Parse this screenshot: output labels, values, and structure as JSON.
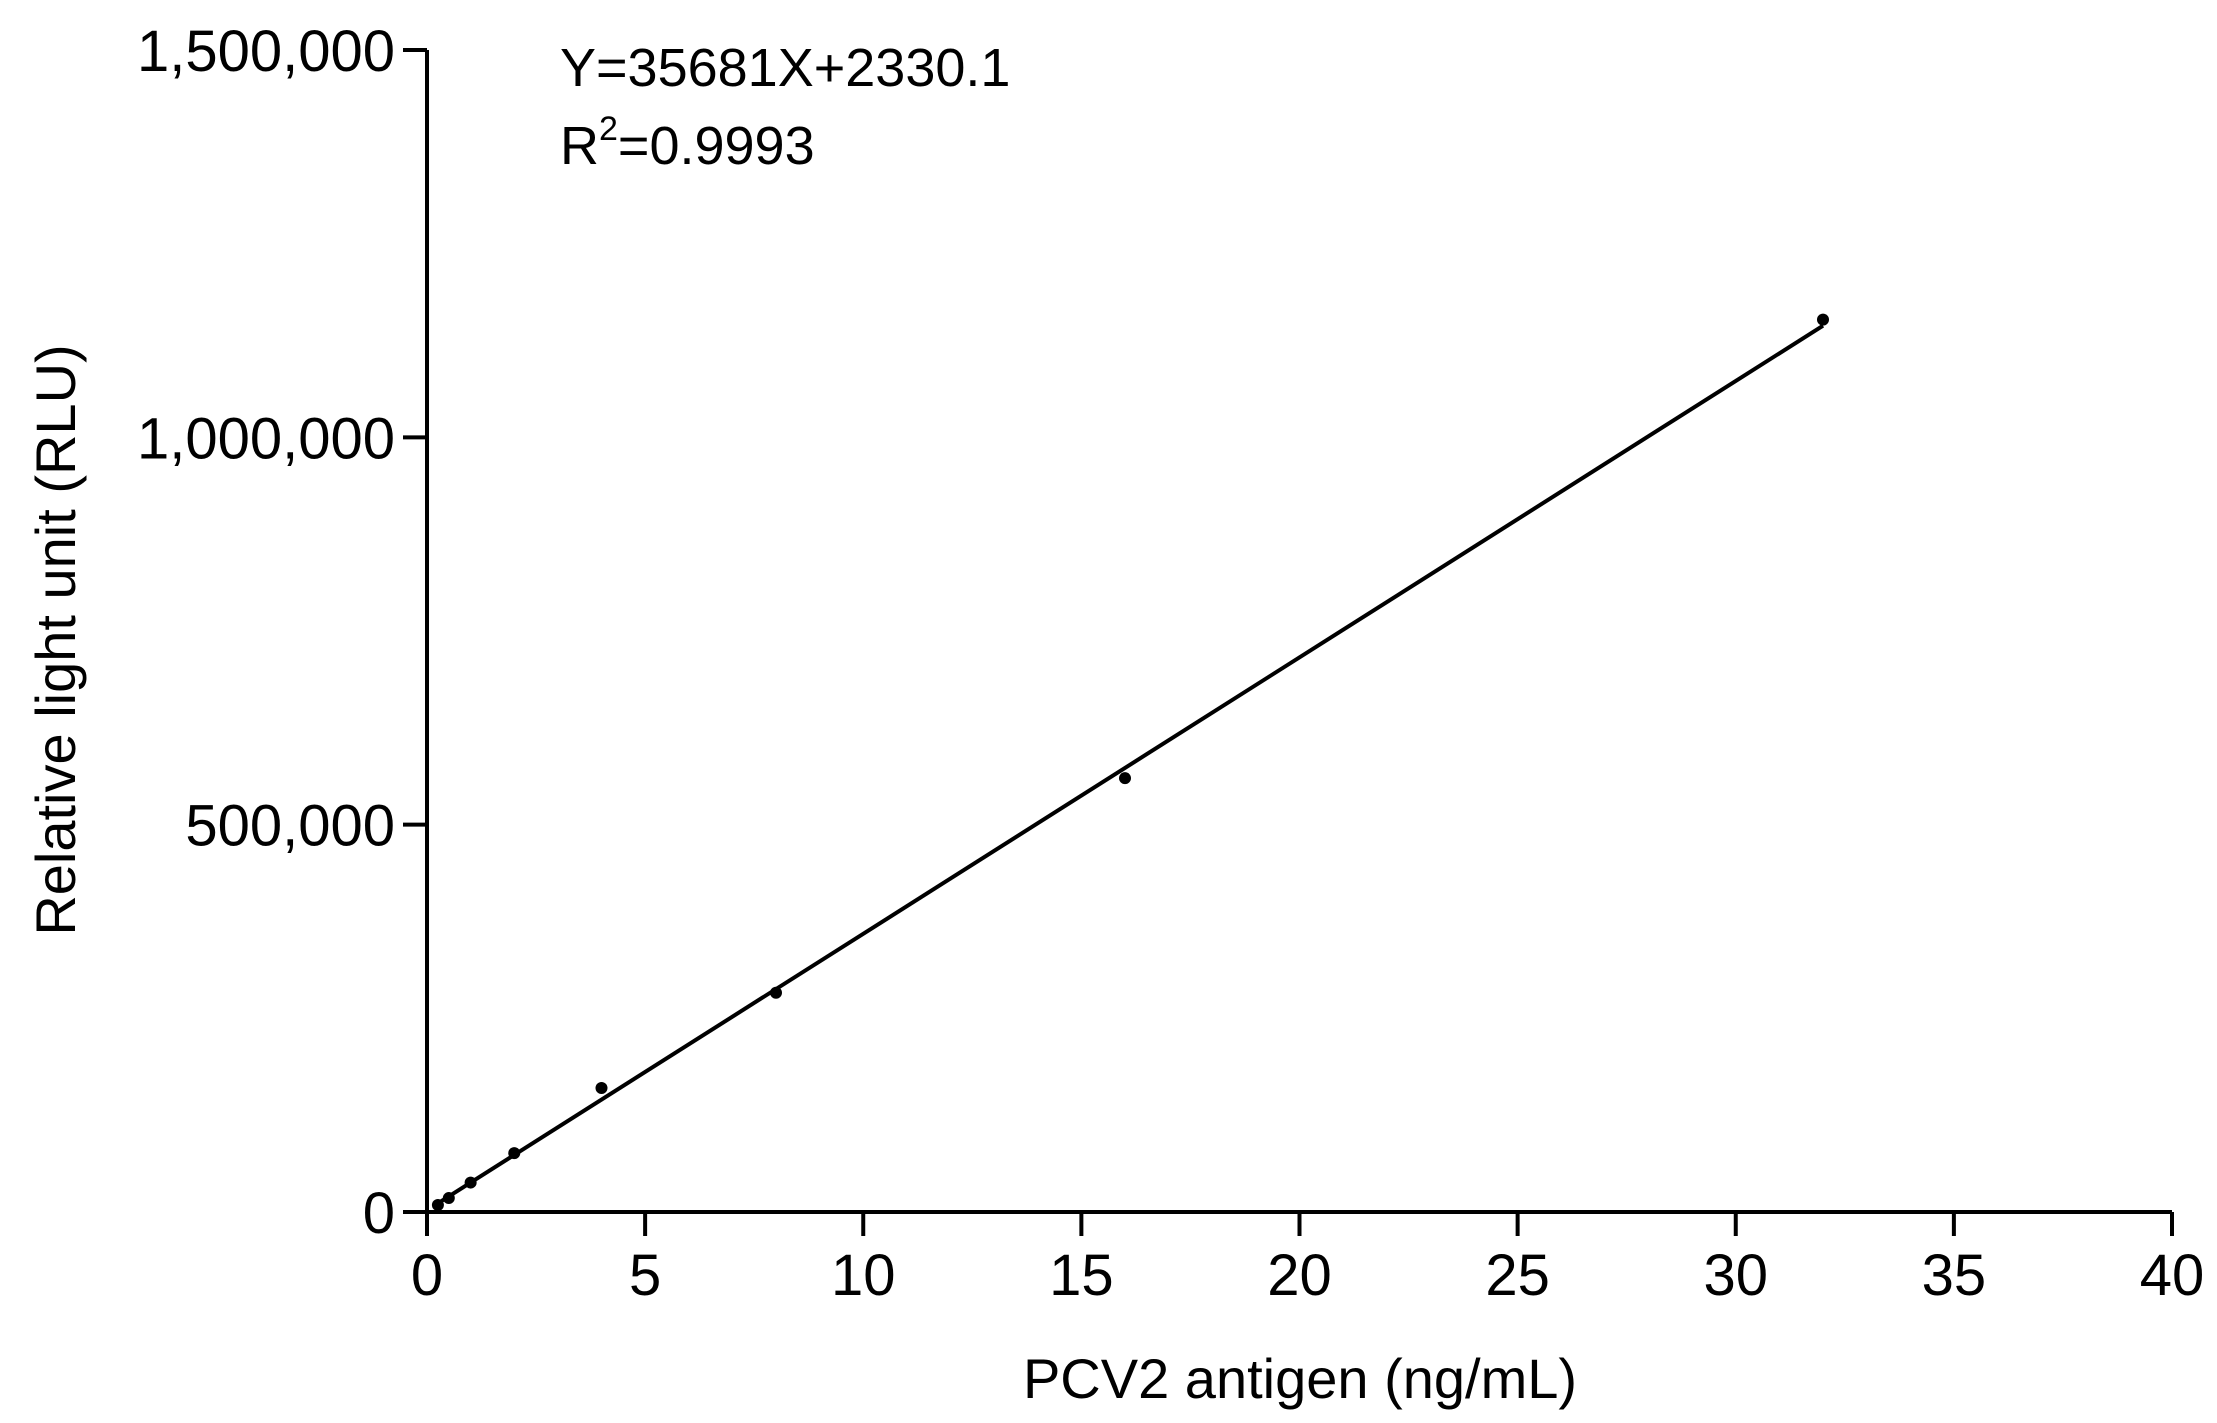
{
  "chart_data": {
    "type": "scatter",
    "title": "",
    "xlabel": "PCV2 antigen (ng/mL)",
    "ylabel": "Relative light unit (RLU)",
    "xlim": [
      0,
      40
    ],
    "ylim": [
      0,
      1500000
    ],
    "x_ticks": [
      0,
      5,
      10,
      15,
      20,
      25,
      30,
      35,
      40
    ],
    "x_tick_labels": [
      "0",
      "5",
      "10",
      "15",
      "20",
      "25",
      "30",
      "35",
      "40"
    ],
    "y_ticks": [
      0,
      500000,
      1000000,
      1500000
    ],
    "y_tick_labels": [
      "0",
      "500,000",
      "1,000,000",
      "1,500,000"
    ],
    "grid": false,
    "legend": "none",
    "series": [
      {
        "points": [
          {
            "x": 0.25,
            "y": 9000
          },
          {
            "x": 0.5,
            "y": 18000
          },
          {
            "x": 1,
            "y": 38000
          },
          {
            "x": 2,
            "y": 76000
          },
          {
            "x": 4,
            "y": 160000
          },
          {
            "x": 8,
            "y": 283000
          },
          {
            "x": 16,
            "y": 560000
          },
          {
            "x": 32,
            "y": 1152000
          }
        ]
      }
    ],
    "fit_line": {
      "slope": 35681,
      "intercept": 2330.1,
      "x_range": [
        0.25,
        32
      ]
    },
    "annotations": {
      "equation": "Y=35681X+2330.1",
      "r2_prefix": "R",
      "r2_sup": "2",
      "r2_value": "=0.9993"
    },
    "colors": {
      "axis": "#000000",
      "marker": "#000000",
      "line": "#000000"
    }
  }
}
